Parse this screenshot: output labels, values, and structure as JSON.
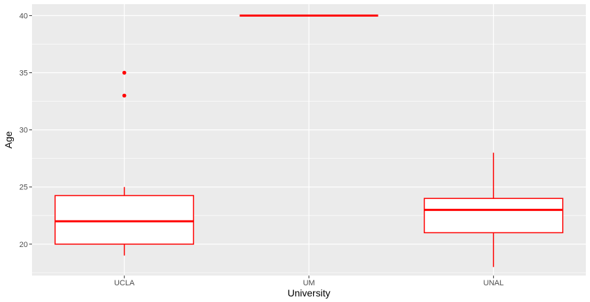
{
  "chart_data": {
    "type": "boxplot",
    "xlabel": "University",
    "ylabel": "Age",
    "categories": [
      "UCLA",
      "UM",
      "UNAL"
    ],
    "ylim": [
      17.25,
      41
    ],
    "yticks": [
      20,
      25,
      30,
      35,
      40
    ],
    "grid": true,
    "boxes": [
      {
        "category": "UCLA",
        "whisker_low": 19,
        "q1": 20,
        "median": 22,
        "q3": 24.25,
        "whisker_high": 25,
        "outliers": [
          33,
          35
        ]
      },
      {
        "category": "UM",
        "whisker_low": 40,
        "q1": 40,
        "median": 40,
        "q3": 40,
        "whisker_high": 40,
        "outliers": []
      },
      {
        "category": "UNAL",
        "whisker_low": 18,
        "q1": 21,
        "median": 23,
        "q3": 24,
        "whisker_high": 28,
        "outliers": []
      }
    ],
    "colors": {
      "box": "#ff0000",
      "panel": "#ebebeb",
      "grid": "#ffffff"
    }
  }
}
